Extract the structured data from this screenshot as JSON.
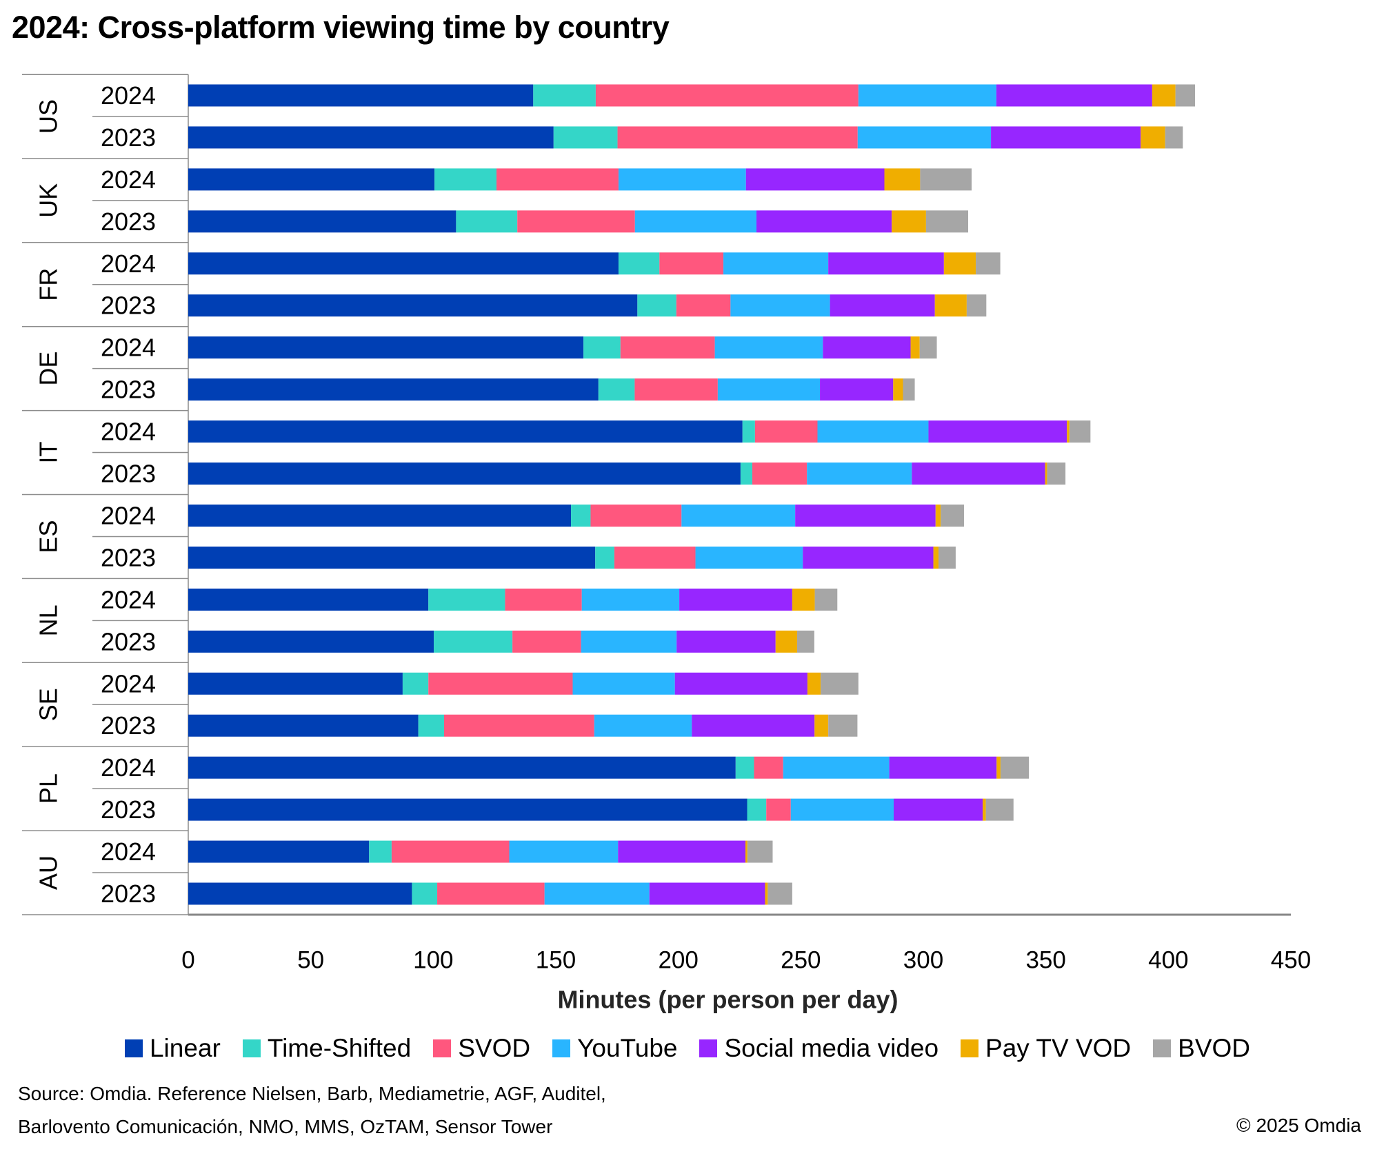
{
  "title": "2024: Cross-platform viewing time by country",
  "chart_data": {
    "type": "bar",
    "orientation": "horizontal",
    "stacked": true,
    "title": "2024: Cross-platform viewing time by country",
    "xlabel": "Minutes (per person per day)",
    "ylabel": "",
    "xlim": [
      0,
      450
    ],
    "xticks": [
      0,
      50,
      100,
      150,
      200,
      250,
      300,
      350,
      400,
      450
    ],
    "grid": false,
    "legend_position": "bottom",
    "groups": [
      "US",
      "UK",
      "FR",
      "DE",
      "IT",
      "ES",
      "NL",
      "SE",
      "PL",
      "AU"
    ],
    "subcategories": [
      "2024",
      "2023"
    ],
    "categories": [
      "US 2024",
      "US 2023",
      "UK 2024",
      "UK 2023",
      "FR 2024",
      "FR 2023",
      "DE 2024",
      "DE 2023",
      "IT 2024",
      "IT 2023",
      "ES 2024",
      "ES 2023",
      "NL 2024",
      "NL 2023",
      "SE 2024",
      "SE 2023",
      "PL 2024",
      "PL 2023",
      "AU 2024",
      "AU 2023"
    ],
    "series": [
      {
        "name": "Linear",
        "color": "#003fb4",
        "values": [
          140.8,
          149.1,
          100.5,
          109.3,
          175.6,
          183.3,
          161.3,
          167.4,
          226.2,
          225.4,
          156.2,
          166.1,
          98.0,
          100.2,
          87.5,
          93.9,
          223.4,
          228.1,
          73.8,
          91.3
        ]
      },
      {
        "name": "Time-Shifted",
        "color": "#34d6c8",
        "values": [
          25.5,
          26.1,
          25.3,
          25.0,
          16.7,
          15.9,
          15.1,
          14.8,
          5.1,
          4.8,
          8.0,
          7.8,
          31.3,
          32.1,
          10.5,
          10.5,
          7.5,
          7.8,
          9.2,
          10.3
        ]
      },
      {
        "name": "SVOD",
        "color": "#ff577e",
        "values": [
          107.2,
          98.0,
          49.8,
          48.0,
          26.1,
          22.1,
          38.5,
          33.9,
          25.5,
          22.3,
          37.1,
          33.1,
          31.3,
          28.0,
          58.9,
          61.3,
          11.9,
          10.0,
          48.0,
          43.8
        ]
      },
      {
        "name": "YouTube",
        "color": "#29b5ff",
        "values": [
          56.3,
          54.4,
          52.0,
          49.6,
          42.8,
          40.6,
          44.1,
          41.7,
          45.3,
          42.8,
          46.4,
          43.8,
          39.8,
          39.0,
          41.7,
          39.8,
          43.3,
          42.0,
          44.4,
          42.8
        ]
      },
      {
        "name": "Social media video",
        "color": "#9726ff",
        "values": [
          63.6,
          61.1,
          56.5,
          55.2,
          47.2,
          42.8,
          35.8,
          29.9,
          56.5,
          54.4,
          57.3,
          53.3,
          46.1,
          40.4,
          54.1,
          50.1,
          43.8,
          36.3,
          52.0,
          47.2
        ]
      },
      {
        "name": "Pay TV VOD",
        "color": "#f0ae00",
        "values": [
          9.5,
          10.0,
          14.6,
          14.0,
          13.0,
          13.0,
          3.7,
          4.0,
          1.0,
          0.8,
          2.1,
          2.1,
          9.2,
          8.8,
          5.4,
          5.6,
          1.6,
          1.3,
          0.8,
          1.1
        ]
      },
      {
        "name": "BVOD",
        "color": "#a6a6a6",
        "values": [
          8.0,
          7.2,
          21.0,
          17.2,
          10.0,
          8.0,
          7.0,
          4.8,
          8.6,
          7.5,
          9.5,
          7.0,
          9.2,
          7.0,
          15.4,
          11.9,
          11.6,
          11.3,
          10.3,
          10.0
        ]
      }
    ]
  },
  "legend": [
    {
      "label": "Linear",
      "color": "#003fb4"
    },
    {
      "label": "Time-Shifted",
      "color": "#34d6c8"
    },
    {
      "label": "SVOD",
      "color": "#ff577e"
    },
    {
      "label": "YouTube",
      "color": "#29b5ff"
    },
    {
      "label": "Social media video",
      "color": "#9726ff"
    },
    {
      "label": "Pay TV VOD",
      "color": "#f0ae00"
    },
    {
      "label": "BVOD",
      "color": "#a6a6a6"
    }
  ],
  "footer": {
    "source_line1": "Source: Omdia. Reference Nielsen, Barb, Mediametrie, AGF, Auditel,",
    "source_line2": "Barlovento Comunicación, NMO, MMS, OzTAM, Sensor Tower",
    "copyright": "© 2025 Omdia"
  }
}
